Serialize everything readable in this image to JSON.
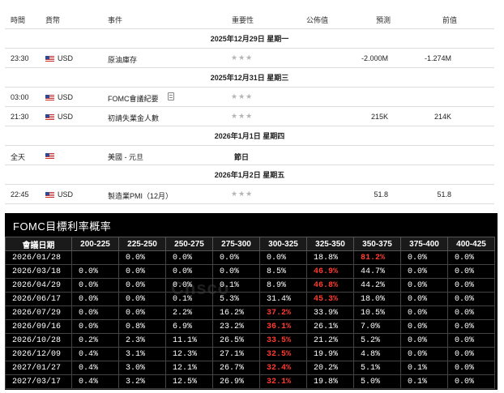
{
  "calendar": {
    "headers": {
      "time": "時間",
      "currency": "貨幣",
      "event": "事件",
      "importance": "重要性",
      "actual": "公佈值",
      "forecast": "預測",
      "previous": "前值"
    },
    "sections": [
      {
        "date": "2025年12月29日 星期一",
        "events": [
          {
            "time": "23:30",
            "currency": "USD",
            "event": "原油庫存",
            "stars": "★★★",
            "forecast": "-2.000M",
            "previous": "-1.274M"
          }
        ]
      },
      {
        "date": "2025年12月31日 星期三",
        "events": [
          {
            "time": "03:00",
            "currency": "USD",
            "event": "FOMC會議紀要",
            "stars": "★★★",
            "forecast": "",
            "previous": ""
          },
          {
            "time": "21:30",
            "currency": "USD",
            "event": "初請失業金人數",
            "stars": "★★★",
            "forecast": "215K",
            "previous": "214K"
          }
        ]
      },
      {
        "date": "2026年1月1日 星期四",
        "events": [
          {
            "time": "全天",
            "currency": "",
            "event": "美國 - 元旦",
            "holiday": "節日"
          }
        ]
      },
      {
        "date": "2026年1月2日 星期五",
        "events": [
          {
            "time": "22:45",
            "currency": "USD",
            "event": "製造業PMI（12月）",
            "stars": "★★★",
            "forecast": "51.8",
            "previous": "51.8"
          }
        ]
      }
    ]
  },
  "fomc": {
    "title": "FOMC目標利率概率",
    "watermark": "Cnsco",
    "columns": [
      "會議日期",
      "200-225",
      "225-250",
      "250-275",
      "275-300",
      "300-325",
      "325-350",
      "350-375",
      "375-400",
      "400-425"
    ],
    "rows": [
      {
        "date": "2026/01/28",
        "values": [
          "",
          "0.0%",
          "0.0%",
          "0.0%",
          "0.0%",
          "18.8%",
          "81.2%",
          "0.0%",
          "0.0%"
        ],
        "hot": 6
      },
      {
        "date": "2026/03/18",
        "values": [
          "0.0%",
          "0.0%",
          "0.0%",
          "0.0%",
          "8.5%",
          "46.9%",
          "44.7%",
          "0.0%",
          "0.0%"
        ],
        "hot": 5
      },
      {
        "date": "2026/04/29",
        "values": [
          "0.0%",
          "0.0%",
          "0.0%",
          "0.1%",
          "8.9%",
          "46.8%",
          "44.2%",
          "0.0%",
          "0.0%"
        ],
        "hot": 5
      },
      {
        "date": "2026/06/17",
        "values": [
          "0.0%",
          "0.0%",
          "0.1%",
          "5.3%",
          "31.4%",
          "45.3%",
          "18.0%",
          "0.0%",
          "0.0%"
        ],
        "hot": 5
      },
      {
        "date": "2026/07/29",
        "values": [
          "0.0%",
          "0.0%",
          "2.2%",
          "16.2%",
          "37.2%",
          "33.9%",
          "10.5%",
          "0.0%",
          "0.0%"
        ],
        "hot": 4
      },
      {
        "date": "2026/09/16",
        "values": [
          "0.0%",
          "0.8%",
          "6.9%",
          "23.2%",
          "36.1%",
          "26.1%",
          "7.0%",
          "0.0%",
          "0.0%"
        ],
        "hot": 4
      },
      {
        "date": "2026/10/28",
        "values": [
          "0.2%",
          "2.3%",
          "11.1%",
          "26.5%",
          "33.5%",
          "21.2%",
          "5.2%",
          "0.0%",
          "0.0%"
        ],
        "hot": 4
      },
      {
        "date": "2026/12/09",
        "values": [
          "0.4%",
          "3.1%",
          "12.3%",
          "27.1%",
          "32.5%",
          "19.9%",
          "4.8%",
          "0.0%",
          "0.0%"
        ],
        "hot": 4
      },
      {
        "date": "2027/01/27",
        "values": [
          "0.4%",
          "3.0%",
          "12.1%",
          "26.7%",
          "32.4%",
          "20.2%",
          "5.1%",
          "0.1%",
          "0.0%"
        ],
        "hot": 4
      },
      {
        "date": "2027/03/17",
        "values": [
          "0.4%",
          "3.2%",
          "12.5%",
          "26.9%",
          "32.1%",
          "19.8%",
          "5.0%",
          "0.1%",
          "0.0%"
        ],
        "hot": 4
      }
    ]
  }
}
